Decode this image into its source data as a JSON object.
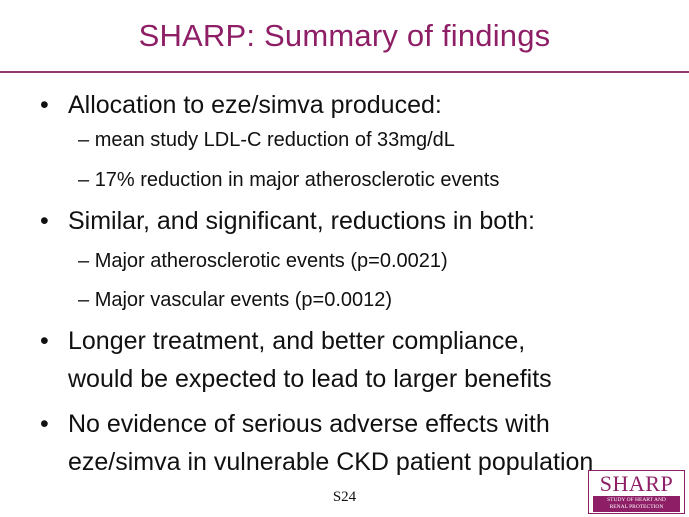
{
  "slide": {
    "title": "SHARP: Summary of findings",
    "bullets": [
      {
        "text": "Allocation to eze/simva produced:",
        "sub": [
          "mean study LDL-C reduction of 33mg/dL",
          "17% reduction in major atherosclerotic events"
        ]
      },
      {
        "text": "Similar, and significant, reductions in both:",
        "sub": [
          "Major atherosclerotic events (p=0.0021)",
          "Major vascular events (p=0.0012)"
        ]
      },
      {
        "text_lines": [
          "Longer treatment, and better compliance,",
          "would be expected to lead to larger benefits"
        ]
      },
      {
        "text_lines": [
          "No evidence of serious adverse effects with",
          "eze/simva in vulnerable CKD patient population"
        ]
      }
    ],
    "bullet_glyph": "•",
    "sub_glyph": "–",
    "footer_code": "S24",
    "logo": {
      "name": "SHARP",
      "tagline_1": "STUDY OF HEART AND",
      "tagline_2": "RENAL PROTECTION"
    },
    "colors": {
      "accent": "#8e1f66",
      "text": "#111111"
    }
  }
}
